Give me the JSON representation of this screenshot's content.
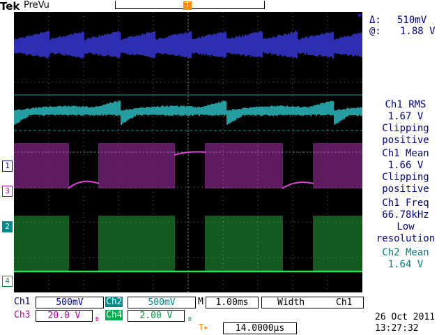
{
  "toolbar": {
    "brand": "Tek",
    "mode": "PreVu"
  },
  "cursor": {
    "delta_label": "Δ:",
    "delta_value": "510mV",
    "at_label": "@:",
    "at_value": "1.88 V"
  },
  "measurements": [
    {
      "lines": [
        "Ch1 RMS",
        "1.67 V",
        "Clipping",
        "positive"
      ],
      "color": "#00008b"
    },
    {
      "lines": [
        "Ch1 Mean",
        "1.66 V",
        "Clipping",
        "positive"
      ],
      "color": "#00008b"
    },
    {
      "lines": [
        "Ch1 Freq",
        "66.78kHz",
        "Low",
        "resolution"
      ],
      "color": "#00008b"
    },
    {
      "lines": [
        "Ch2 Mean",
        "1.64 V"
      ],
      "color": "#008080"
    }
  ],
  "markers": {
    "ch1": "1",
    "ch3": "3",
    "ch2": "2",
    "ch4": "4",
    "trigger": "T"
  },
  "settings": {
    "ch1_label": "Ch1",
    "ch1_scale": "500mV",
    "ch2_label": "Ch2",
    "ch2_scale": "500mV",
    "ch3_label": "Ch3",
    "ch3_scale": "20.0 V",
    "ch3_bw": "B",
    "ch4_label": "Ch4",
    "ch4_scale": "2.00 V",
    "ch4_bw": "B",
    "timebase_prefix": "M",
    "timebase": "1.00ms",
    "trigger_type": "Width",
    "trigger_source": "Ch1",
    "trigger_position_icon": "T▸",
    "trigger_position": "14.0000µs"
  },
  "datetime": {
    "date": "26 Oct  2011",
    "time": "13:27:32"
  },
  "colors": {
    "ch1": "#3a3ae0",
    "ch2": "#33e0e6",
    "ch3": "#e040e0",
    "ch4": "#30e050",
    "trigger": "#ff8c00",
    "graticule": "#000000",
    "grid": "#6a6a6a"
  }
}
